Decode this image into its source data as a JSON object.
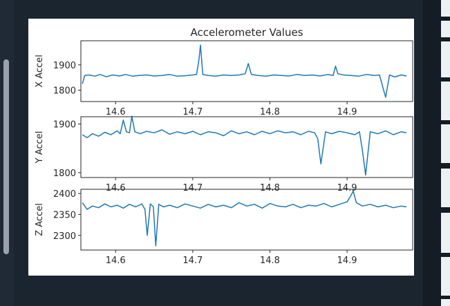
{
  "colors": {
    "line": "#1f77b4",
    "axes": "#262626"
  },
  "chart_data": [
    {
      "type": "line",
      "title": "Accelerometer Values",
      "ylabel": "X Accel",
      "xlim": [
        14.555,
        14.985
      ],
      "ylim": [
        1755,
        1995
      ],
      "xticks": [
        "14.6",
        "14.7",
        "14.8",
        "14.9"
      ],
      "yticks": [
        "1800",
        "1900"
      ],
      "x": [
        14.557,
        14.56,
        14.566,
        14.573,
        14.58,
        14.588,
        14.596,
        14.605,
        14.613,
        14.622,
        14.63,
        14.64,
        14.65,
        14.66,
        14.67,
        14.68,
        14.69,
        14.7,
        14.705,
        14.708,
        14.71,
        14.713,
        14.72,
        14.73,
        14.74,
        14.75,
        14.76,
        14.768,
        14.772,
        14.776,
        14.785,
        14.795,
        14.805,
        14.815,
        14.825,
        14.835,
        14.845,
        14.855,
        14.865,
        14.875,
        14.882,
        14.885,
        14.888,
        14.895,
        14.905,
        14.915,
        14.925,
        14.935,
        14.942,
        14.946,
        14.95,
        14.955,
        14.962,
        14.97,
        14.977
      ],
      "series": [
        {
          "values": [
            1825,
            1858,
            1860,
            1855,
            1862,
            1853,
            1860,
            1856,
            1862,
            1855,
            1858,
            1860,
            1856,
            1858,
            1862,
            1855,
            1857,
            1860,
            1862,
            1920,
            1978,
            1862,
            1858,
            1855,
            1860,
            1858,
            1860,
            1865,
            1905,
            1862,
            1858,
            1855,
            1860,
            1858,
            1856,
            1862,
            1858,
            1860,
            1856,
            1862,
            1858,
            1895,
            1865,
            1860,
            1858,
            1855,
            1862,
            1858,
            1860,
            1815,
            1772,
            1860,
            1852,
            1860,
            1856
          ]
        }
      ]
    },
    {
      "type": "line",
      "title": "",
      "ylabel": "Y Accel",
      "xlim": [
        14.555,
        14.985
      ],
      "ylim": [
        1790,
        1915
      ],
      "xticks": [
        "14.6",
        "14.7",
        "14.8",
        "14.9"
      ],
      "yticks": [
        "1800",
        "1900"
      ],
      "x": [
        14.557,
        14.563,
        14.57,
        14.578,
        14.586,
        14.594,
        14.602,
        14.606,
        14.61,
        14.614,
        14.618,
        14.621,
        14.625,
        14.632,
        14.64,
        14.65,
        14.66,
        14.67,
        14.68,
        14.69,
        14.7,
        14.71,
        14.72,
        14.73,
        14.74,
        14.75,
        14.76,
        14.77,
        14.78,
        14.79,
        14.8,
        14.81,
        14.82,
        14.83,
        14.84,
        14.85,
        14.858,
        14.862,
        14.866,
        14.872,
        14.88,
        14.89,
        14.9,
        14.91,
        14.916,
        14.92,
        14.924,
        14.93,
        14.94,
        14.95,
        14.96,
        14.97,
        14.977
      ],
      "series": [
        {
          "values": [
            1878,
            1872,
            1880,
            1875,
            1883,
            1878,
            1886,
            1880,
            1908,
            1884,
            1882,
            1916,
            1884,
            1880,
            1885,
            1882,
            1888,
            1879,
            1884,
            1880,
            1885,
            1878,
            1884,
            1882,
            1876,
            1886,
            1880,
            1884,
            1878,
            1885,
            1880,
            1886,
            1882,
            1884,
            1878,
            1885,
            1882,
            1870,
            1818,
            1884,
            1880,
            1885,
            1882,
            1878,
            1884,
            1845,
            1795,
            1884,
            1880,
            1886,
            1878,
            1884,
            1882
          ]
        }
      ]
    },
    {
      "type": "line",
      "title": "",
      "ylabel": "Z Accel",
      "xlim": [
        14.555,
        14.985
      ],
      "ylim": [
        2265,
        2410
      ],
      "xticks": [
        "14.6",
        "14.7",
        "14.8",
        "14.9"
      ],
      "yticks": [
        "2300",
        "2350",
        "2400"
      ],
      "x": [
        14.557,
        14.563,
        14.57,
        14.578,
        14.586,
        14.594,
        14.602,
        14.61,
        14.618,
        14.626,
        14.634,
        14.638,
        14.641,
        14.645,
        14.649,
        14.652,
        14.656,
        14.662,
        14.67,
        14.68,
        14.69,
        14.7,
        14.71,
        14.72,
        14.73,
        14.74,
        14.75,
        14.76,
        14.77,
        14.78,
        14.79,
        14.8,
        14.81,
        14.82,
        14.83,
        14.84,
        14.85,
        14.86,
        14.87,
        14.88,
        14.89,
        14.9,
        14.905,
        14.908,
        14.912,
        14.92,
        14.93,
        14.94,
        14.95,
        14.96,
        14.97,
        14.977
      ],
      "series": [
        {
          "values": [
            2378,
            2362,
            2370,
            2366,
            2375,
            2368,
            2372,
            2365,
            2374,
            2368,
            2375,
            2362,
            2300,
            2375,
            2368,
            2275,
            2374,
            2368,
            2372,
            2366,
            2375,
            2370,
            2365,
            2374,
            2368,
            2372,
            2366,
            2378,
            2370,
            2374,
            2365,
            2376,
            2370,
            2368,
            2374,
            2366,
            2372,
            2370,
            2376,
            2368,
            2374,
            2380,
            2395,
            2406,
            2378,
            2370,
            2374,
            2368,
            2372,
            2366,
            2370,
            2368
          ]
        }
      ]
    }
  ]
}
